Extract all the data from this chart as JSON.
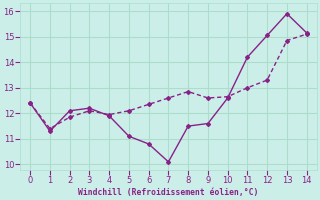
{
  "line1_x": [
    0,
    1,
    2,
    3,
    4,
    5,
    6,
    7,
    8,
    9,
    10,
    11,
    12,
    13,
    14
  ],
  "line1_y": [
    12.4,
    11.3,
    12.1,
    12.2,
    11.9,
    11.1,
    10.8,
    10.1,
    11.5,
    11.6,
    12.6,
    14.2,
    15.05,
    15.9,
    15.15
  ],
  "line2_x": [
    0,
    1,
    2,
    3,
    4,
    5,
    6,
    7,
    8,
    9,
    10,
    11,
    12,
    13,
    14
  ],
  "line2_y": [
    12.4,
    11.4,
    11.85,
    12.1,
    11.95,
    12.1,
    12.35,
    12.6,
    12.85,
    12.6,
    12.65,
    13.0,
    13.3,
    14.85,
    15.1
  ],
  "line_color": "#882288",
  "bg_color": "#cceee8",
  "grid_color": "#aaddcc",
  "xlabel": "Windchill (Refroidissement éolien,°C)",
  "xlabel_color": "#882288",
  "xlim": [
    -0.5,
    14.5
  ],
  "ylim": [
    9.8,
    16.3
  ],
  "xticks": [
    0,
    1,
    2,
    3,
    4,
    5,
    6,
    7,
    8,
    9,
    10,
    11,
    12,
    13,
    14
  ],
  "yticks": [
    10,
    11,
    12,
    13,
    14,
    15,
    16
  ]
}
